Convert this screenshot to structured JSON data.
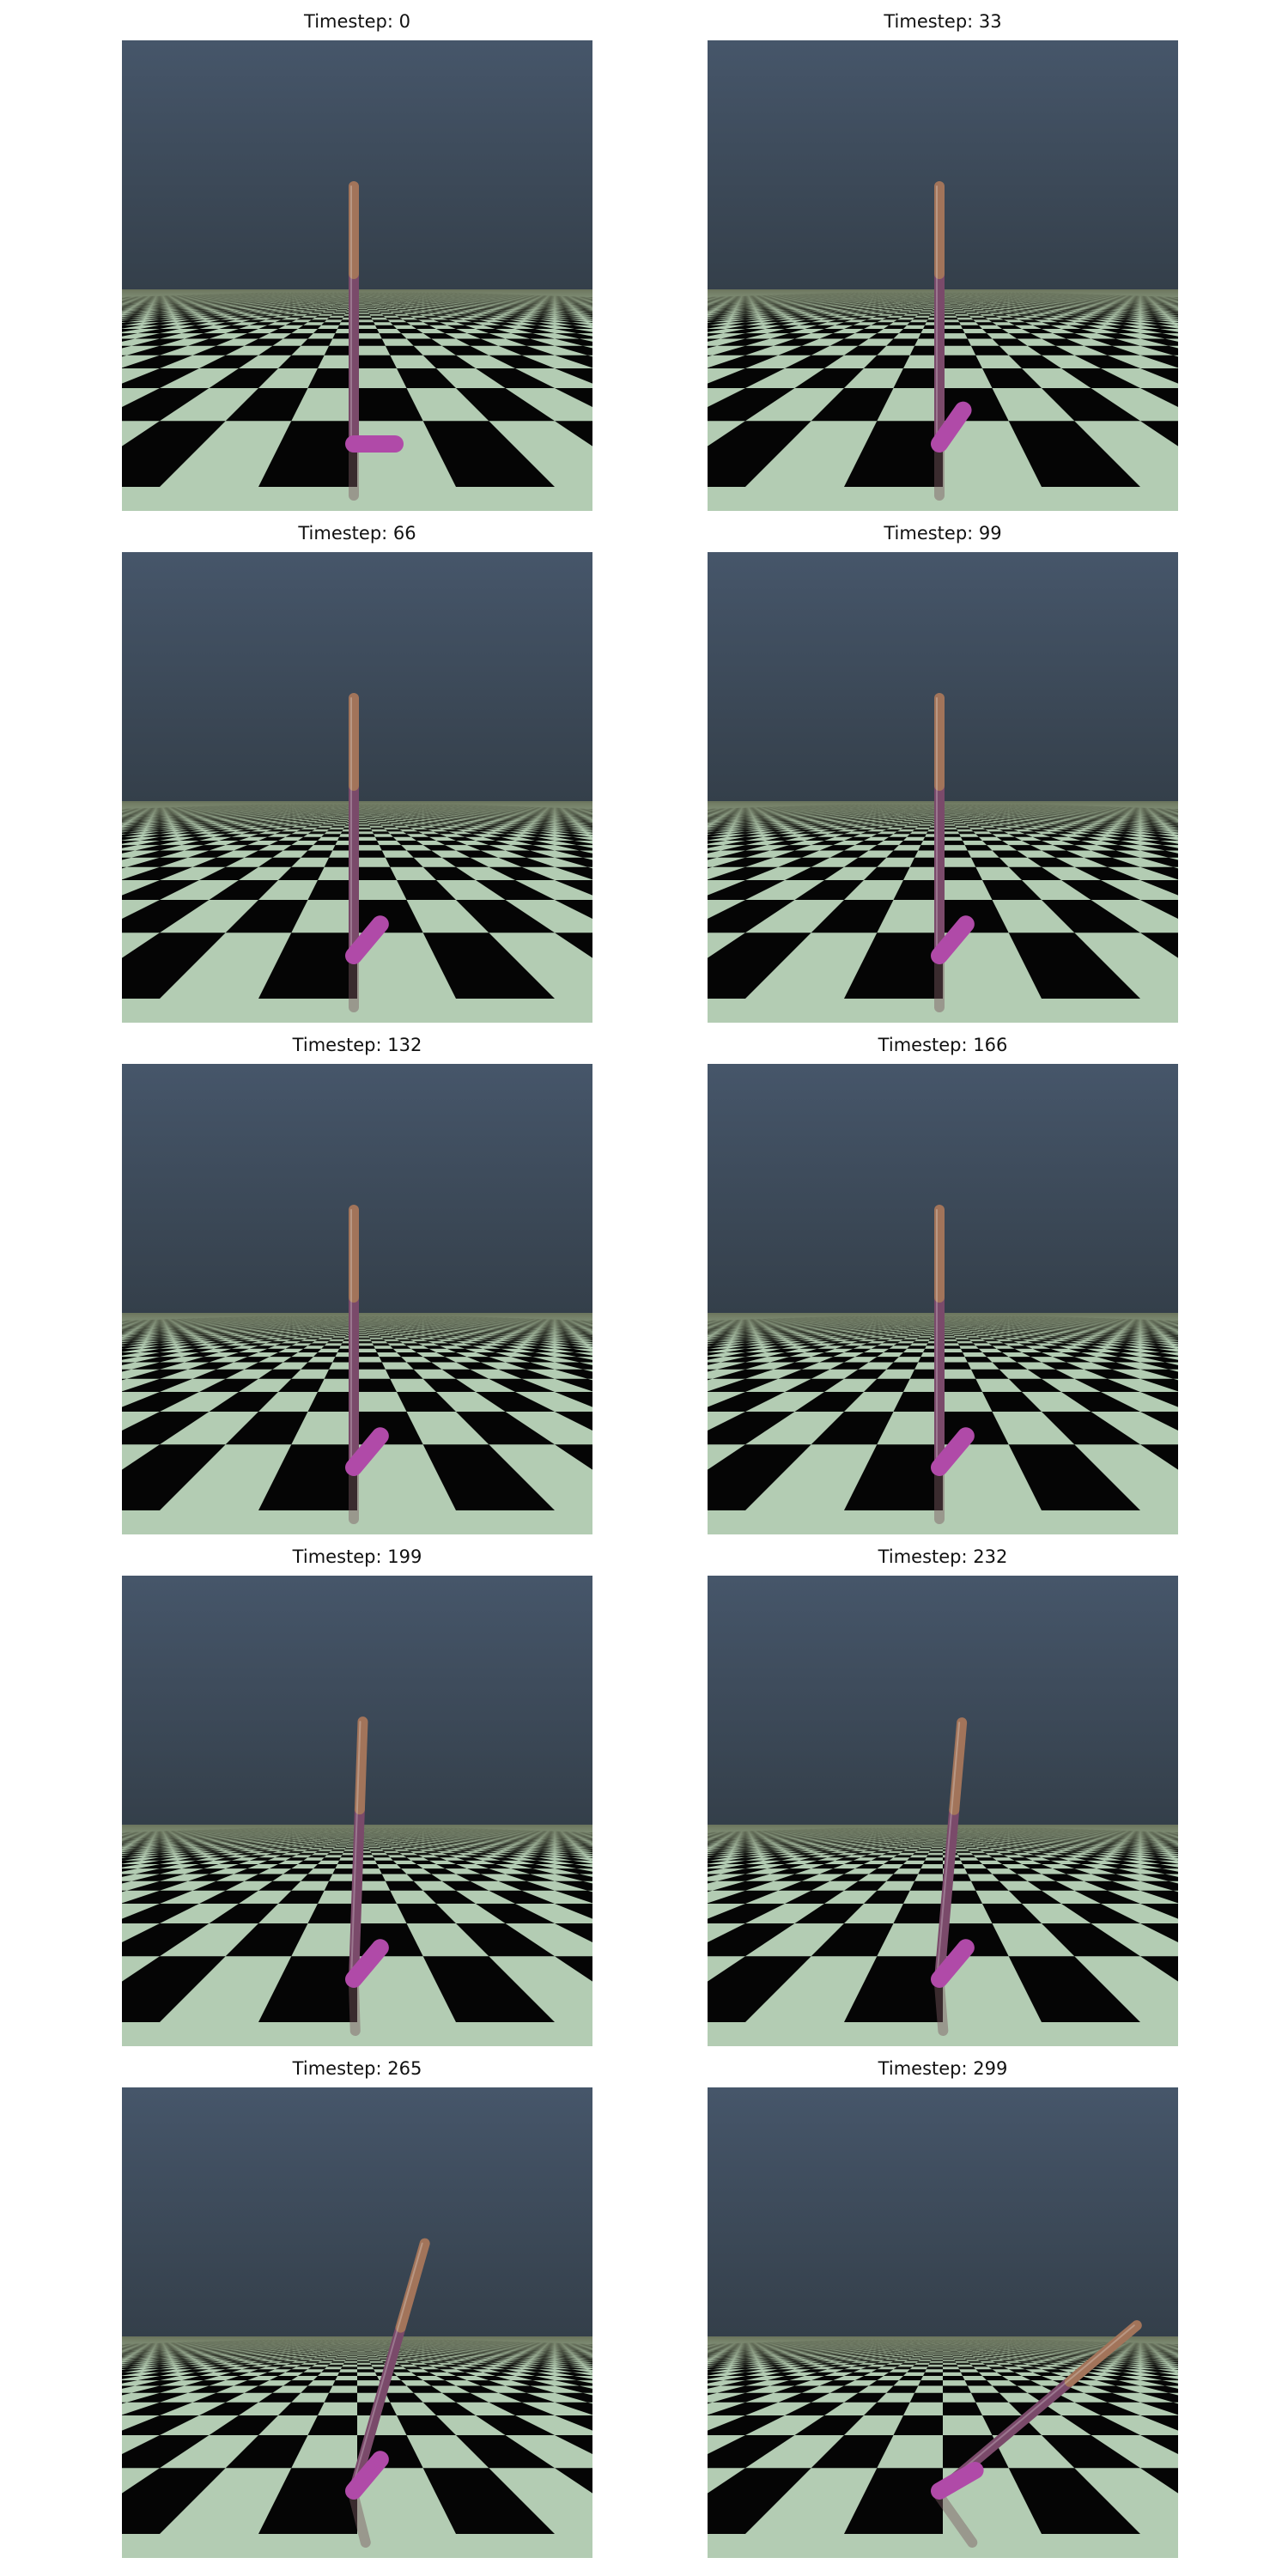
{
  "figure": {
    "panels": [
      {
        "title": "Timestep: 0",
        "foot_angle": 90,
        "lean": 0
      },
      {
        "title": "Timestep: 33",
        "foot_angle": 35,
        "lean": 0
      },
      {
        "title": "Timestep: 66",
        "foot_angle": 40,
        "lean": 0
      },
      {
        "title": "Timestep: 99",
        "foot_angle": 40,
        "lean": 0
      },
      {
        "title": "Timestep: 132",
        "foot_angle": 40,
        "lean": 0
      },
      {
        "title": "Timestep: 166",
        "foot_angle": 40,
        "lean": 0
      },
      {
        "title": "Timestep: 199",
        "foot_angle": 40,
        "lean": 2
      },
      {
        "title": "Timestep: 232",
        "foot_angle": 40,
        "lean": 5
      },
      {
        "title": "Timestep: 265",
        "foot_angle": 40,
        "lean": 16
      },
      {
        "title": "Timestep: 299",
        "foot_angle": 60,
        "lean": 50
      }
    ]
  },
  "colors": {
    "sky_top": "#46566a",
    "sky_bottom": "#343f4a",
    "horizon": "#6d775f",
    "tile_light": "#b3ccb3",
    "tile_dark": "#050505",
    "torso": "#a2745a",
    "thigh": "#7a4a6a",
    "foot": "#b04aa8"
  }
}
